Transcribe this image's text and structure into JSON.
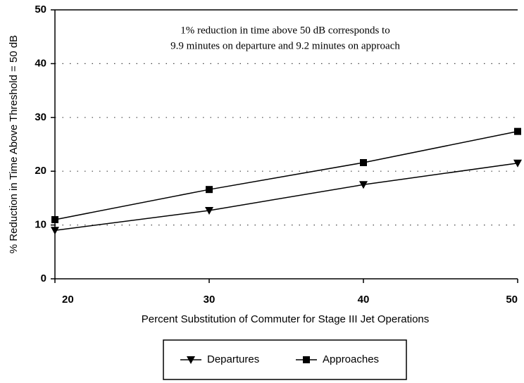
{
  "chart_data": {
    "type": "line",
    "xlabel": "Percent Substitution of Commuter for Stage III Jet Operations",
    "ylabel": "% Reduction in Time Above Threshold = 50 dB",
    "annotation": [
      "1% reduction in time above 50 dB corresponds to",
      "9.9 minutes on departure and 9.2 minutes on approach"
    ],
    "x": [
      20,
      30,
      40,
      50
    ],
    "series": [
      {
        "name": "Departures",
        "color": "#000000",
        "marker": "triangle-down",
        "values": [
          9.0,
          12.7,
          17.5,
          21.5
        ]
      },
      {
        "name": "Approaches",
        "color": "#000000",
        "marker": "square",
        "values": [
          11.0,
          16.6,
          21.6,
          27.4
        ]
      }
    ],
    "xlim": [
      20,
      50
    ],
    "xticks": [
      20,
      30,
      40,
      50
    ],
    "ylim": [
      0,
      50
    ],
    "yticks": [
      0,
      10,
      20,
      30,
      40,
      50
    ],
    "grid": true,
    "legend": "bottom"
  }
}
